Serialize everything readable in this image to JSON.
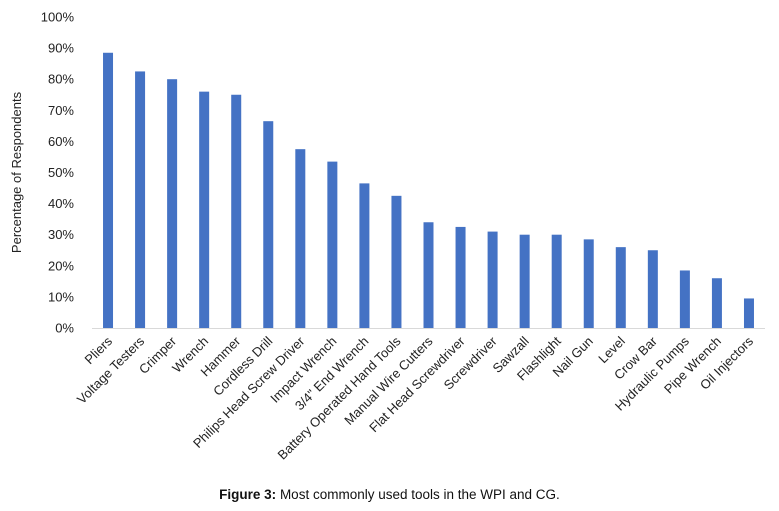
{
  "chart_data": {
    "type": "bar",
    "ylabel": "Percentage of Respondents",
    "xlabel": "",
    "ylim": [
      0,
      100
    ],
    "yticks": [
      "0%",
      "10%",
      "20%",
      "30%",
      "40%",
      "50%",
      "60%",
      "70%",
      "80%",
      "90%",
      "100%"
    ],
    "grid": false,
    "bar_color": "#4472C4",
    "categories": [
      "Pliers",
      "Voltage Testers",
      "Crimper",
      "Wrench",
      "Hammer",
      "Cordless Drill",
      "Philips Head Screw Driver",
      "Impact Wrench",
      "3/4\" End Wrench",
      "Battery Operated Hand Tools",
      "Manual Wire Cutters",
      "Flat Head Screwdriver",
      "Screwdriver",
      "Sawzall",
      "Flashlight",
      "Nail Gun",
      "Level",
      "Crow Bar",
      "Hydraulic Pumps",
      "Pipe Wrench",
      "Oil Injectors"
    ],
    "values": [
      88.5,
      82.5,
      80,
      76,
      75,
      66.5,
      57.5,
      53.5,
      46.5,
      42.5,
      34,
      32.5,
      31,
      30,
      30,
      28.5,
      26,
      25,
      18.5,
      16,
      9.5
    ]
  },
  "caption": {
    "label": "Figure 3:",
    "text": " Most commonly used tools in the WPI and CG."
  }
}
